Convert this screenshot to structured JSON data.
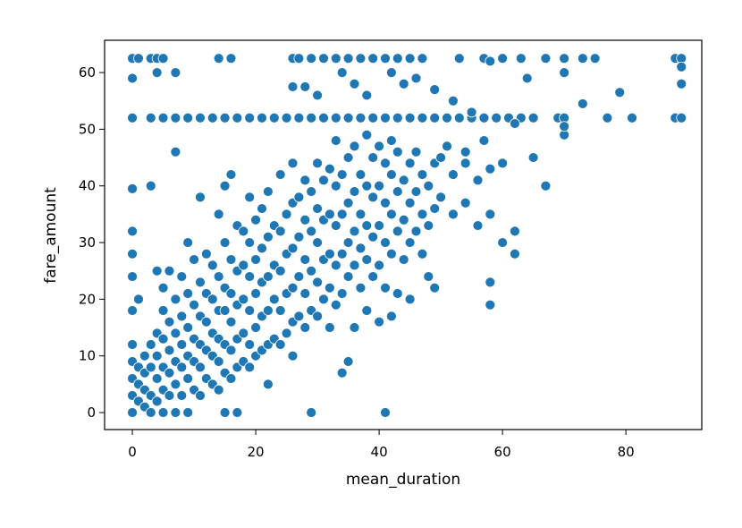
{
  "chart_data": {
    "type": "scatter",
    "xlabel": "mean_duration",
    "ylabel": "fare_amount",
    "color": "#1f77b4",
    "xlim": [
      -4.5,
      92.3
    ],
    "ylim": [
      -3,
      65.7
    ],
    "xticks": [
      0,
      20,
      40,
      60,
      80
    ],
    "yticks": [
      0,
      10,
      20,
      30,
      40,
      50,
      60
    ],
    "grid": false,
    "x": [
      0,
      3,
      5,
      7,
      9,
      11,
      13,
      15,
      17,
      19,
      21,
      23,
      25,
      27,
      29,
      31,
      33,
      35,
      37,
      39,
      41,
      43,
      45,
      47,
      49,
      51,
      53,
      55,
      57,
      59,
      61,
      63,
      65,
      69,
      70,
      77,
      81,
      88,
      89,
      0,
      1,
      3,
      4,
      5,
      14,
      16,
      26,
      27,
      29,
      31,
      33,
      35,
      37,
      39,
      41,
      43,
      45,
      47,
      53,
      57,
      60,
      63,
      67,
      70,
      73,
      75,
      88,
      89,
      0,
      4,
      7,
      26,
      28,
      30,
      34,
      36,
      38,
      42,
      44,
      46,
      49,
      52,
      55,
      58,
      64,
      70,
      73,
      79,
      89,
      89,
      70,
      70,
      62,
      57,
      51,
      54,
      60,
      65,
      67,
      0,
      0,
      0,
      0,
      0,
      0,
      0,
      0,
      0,
      0,
      1,
      1,
      1,
      1,
      2,
      2,
      2,
      2,
      3,
      3,
      3,
      3,
      3,
      4,
      4,
      4,
      4,
      4,
      5,
      5,
      5,
      5,
      5,
      5,
      6,
      6,
      6,
      6,
      6,
      7,
      7,
      7,
      7,
      7,
      7,
      8,
      8,
      8,
      8,
      8,
      9,
      9,
      9,
      9,
      9,
      9,
      10,
      10,
      10,
      10,
      10,
      11,
      11,
      11,
      11,
      11,
      11,
      12,
      12,
      12,
      12,
      12,
      13,
      13,
      13,
      13,
      13,
      14,
      14,
      14,
      14,
      14,
      14,
      15,
      15,
      15,
      15,
      15,
      15,
      15,
      16,
      16,
      16,
      16,
      16,
      16,
      17,
      17,
      17,
      17,
      17,
      17,
      18,
      18,
      18,
      18,
      18,
      19,
      19,
      19,
      19,
      19,
      19,
      20,
      20,
      20,
      20,
      20,
      21,
      21,
      21,
      21,
      21,
      22,
      22,
      22,
      22,
      22,
      22,
      23,
      23,
      23,
      23,
      24,
      24,
      24,
      24,
      24,
      25,
      25,
      25,
      25,
      26,
      26,
      26,
      26,
      26,
      26,
      27,
      27,
      27,
      27,
      28,
      28,
      28,
      28,
      28,
      29,
      29,
      29,
      29,
      29,
      30,
      30,
      30,
      30,
      30,
      31,
      31,
      31,
      31,
      32,
      32,
      32,
      32,
      32,
      33,
      33,
      33,
      33,
      33,
      34,
      34,
      34,
      34,
      34,
      35,
      35,
      35,
      35,
      35,
      36,
      36,
      36,
      36,
      36,
      37,
      37,
      37,
      37,
      38,
      38,
      38,
      38,
      38,
      39,
      39,
      39,
      39,
      40,
      40,
      40,
      40,
      40,
      41,
      41,
      41,
      41,
      41,
      42,
      42,
      42,
      42,
      42,
      43,
      43,
      43,
      43,
      44,
      44,
      44,
      45,
      45,
      45,
      45,
      46,
      46,
      46,
      47,
      47,
      47,
      48,
      48,
      48,
      49,
      49,
      49,
      50,
      50,
      52,
      52,
      54,
      54,
      56,
      56,
      58,
      58,
      58,
      58,
      60,
      60,
      62,
      62
    ],
    "y": [
      52,
      52,
      52,
      52,
      52,
      52,
      52,
      52,
      52,
      52,
      52,
      52,
      52,
      52,
      52,
      52,
      52,
      52,
      52,
      52,
      52,
      52,
      52,
      52,
      52,
      52,
      52,
      52,
      52,
      52,
      52,
      52,
      52,
      52,
      52,
      52,
      52,
      52,
      52,
      62.5,
      62.5,
      62.5,
      62.5,
      62.5,
      62.5,
      62.5,
      62.5,
      62.5,
      62.5,
      62.5,
      62.5,
      62.5,
      62.5,
      62.5,
      62.5,
      62.5,
      62.5,
      62.5,
      62.5,
      62.5,
      62.5,
      62.5,
      62.5,
      62.5,
      62.5,
      62.5,
      62.5,
      62.5,
      59,
      60,
      60,
      57.5,
      57.5,
      56,
      60,
      58,
      56,
      60,
      58,
      59,
      57,
      55,
      53,
      62,
      59,
      60,
      54.5,
      56.5,
      58,
      61,
      49,
      50.5,
      51,
      48,
      47,
      46,
      44,
      45,
      40,
      0,
      3,
      6,
      9,
      12,
      18,
      24,
      28,
      32,
      39.5,
      2,
      5,
      8,
      20,
      1,
      4,
      7,
      10,
      0,
      3,
      8,
      12,
      40,
      2,
      6,
      10,
      14,
      25,
      0,
      4,
      8,
      13,
      18,
      22,
      3,
      7,
      11,
      16,
      25,
      0,
      5,
      9,
      14,
      20,
      46,
      3,
      8,
      12,
      17,
      24,
      0,
      6,
      10,
      15,
      21,
      30,
      4,
      9,
      13,
      19,
      27,
      3,
      8,
      12,
      17,
      23,
      38,
      6,
      11,
      16,
      21,
      28,
      5,
      10,
      14,
      20,
      26,
      4,
      9,
      13,
      18,
      24,
      35,
      0,
      7,
      12,
      18,
      22,
      30,
      40,
      6,
      11,
      16,
      21,
      27,
      42,
      0,
      8,
      13,
      19,
      25,
      33,
      9,
      14,
      20,
      26,
      32,
      8,
      12,
      18,
      24,
      30,
      38,
      10,
      15,
      21,
      27,
      34,
      11,
      17,
      23,
      29,
      36,
      5,
      12,
      18,
      24,
      31,
      39,
      13,
      20,
      26,
      33,
      12,
      18,
      25,
      32,
      42,
      14,
      21,
      28,
      35,
      10,
      16,
      22,
      29,
      37,
      44,
      17,
      24,
      31,
      38,
      15,
      21,
      27,
      34,
      41,
      0,
      18,
      25,
      32,
      39,
      17,
      23,
      30,
      36,
      44,
      20,
      27,
      34,
      41,
      15,
      22,
      28,
      35,
      43,
      19,
      26,
      33,
      40,
      48,
      7,
      21,
      28,
      35,
      42,
      9,
      24,
      30,
      37,
      45,
      15,
      26,
      32,
      39,
      47,
      22,
      29,
      35,
      42,
      18,
      27,
      33,
      40,
      49,
      24,
      31,
      38,
      45,
      16,
      26,
      33,
      40,
      47,
      0,
      22,
      30,
      37,
      44,
      17,
      28,
      35,
      42,
      48,
      21,
      32,
      39,
      46,
      27,
      34,
      41,
      20,
      30,
      37,
      44,
      32,
      39,
      46,
      28,
      35,
      42,
      24,
      33,
      40,
      22,
      36,
      44,
      38,
      45,
      35,
      42,
      37,
      44,
      33,
      41,
      19,
      23,
      35,
      43,
      30,
      44,
      28,
      32
    ]
  }
}
